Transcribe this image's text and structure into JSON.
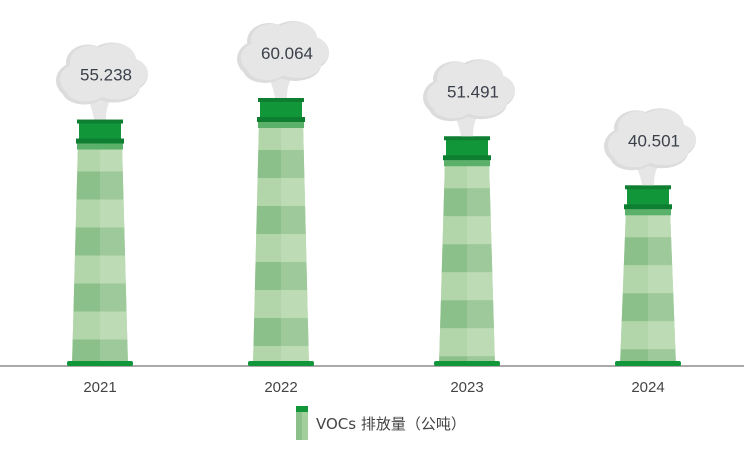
{
  "chart_data": {
    "type": "bar",
    "style": "pictorial chimney with smoke clouds",
    "categories": [
      "2021",
      "2022",
      "2023",
      "2024"
    ],
    "series": [
      {
        "name": "VOCs 排放量（公吨）",
        "values": [
          55.238,
          60.064,
          51.491,
          40.501
        ]
      }
    ],
    "data_labels": [
      "55.238",
      "60.064",
      "51.491",
      "40.501"
    ],
    "legend": {
      "label": "VOCs 排放量（公吨）",
      "position": "bottom"
    },
    "grid": false,
    "colors": {
      "cap": "#11963a",
      "body_dark": "#8cc08a",
      "body_light": "#b2d6a9",
      "smoke": "#e6e6e6",
      "axis": "#555555"
    }
  }
}
